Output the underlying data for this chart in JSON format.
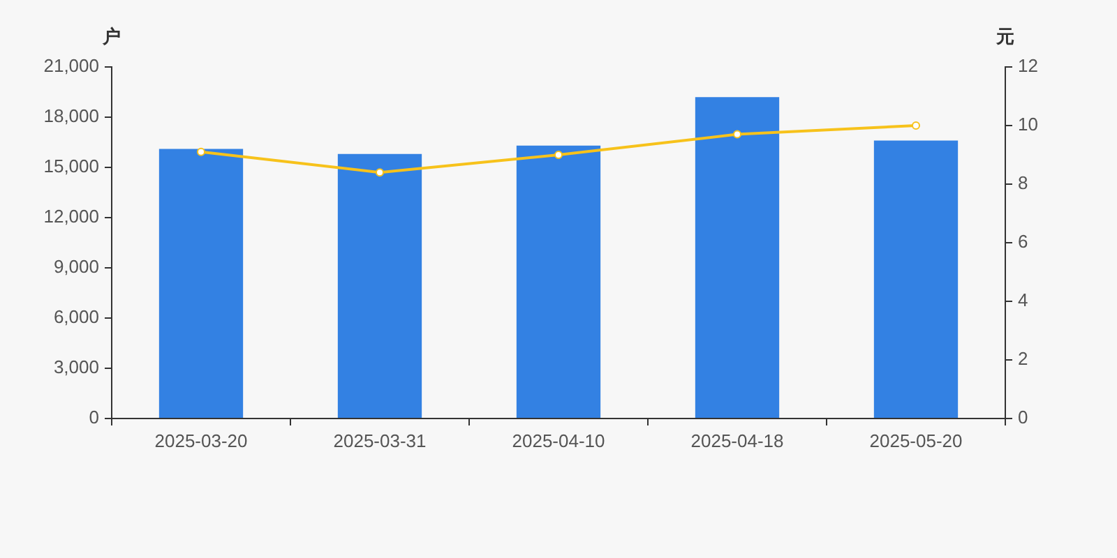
{
  "chart_data": {
    "type": "bar",
    "ylabel": "户",
    "y2label": "元",
    "categories": [
      "2025-03-20",
      "2025-03-31",
      "2025-04-10",
      "2025-04-18",
      "2025-05-20"
    ],
    "series": [
      {
        "color": "#3381e3",
        "values": [
          16100,
          15800,
          16300,
          19200,
          16600
        ]
      },
      {
        "type": "line",
        "axis": "y2",
        "color": "#f7c21b",
        "values": [
          9.1,
          8.4,
          9.0,
          9.7,
          10.0
        ]
      }
    ],
    "ylim": [
      0,
      21000
    ],
    "yticks": [
      0,
      {
        "value": 3000,
        "label": "3,000"
      },
      {
        "value": 6000,
        "label": "6,000"
      },
      {
        "value": 9000,
        "label": "9,000"
      },
      {
        "value": 12000,
        "label": "12,000"
      },
      {
        "value": 15000,
        "label": "15,000"
      },
      {
        "value": 18000,
        "label": "18,000"
      },
      {
        "value": 21000,
        "label": "21,000"
      }
    ],
    "y2lim": [
      0,
      12
    ],
    "y2ticks": [
      0,
      2,
      4,
      6,
      8,
      10,
      12
    ],
    "marker": "circle",
    "grid": false
  }
}
